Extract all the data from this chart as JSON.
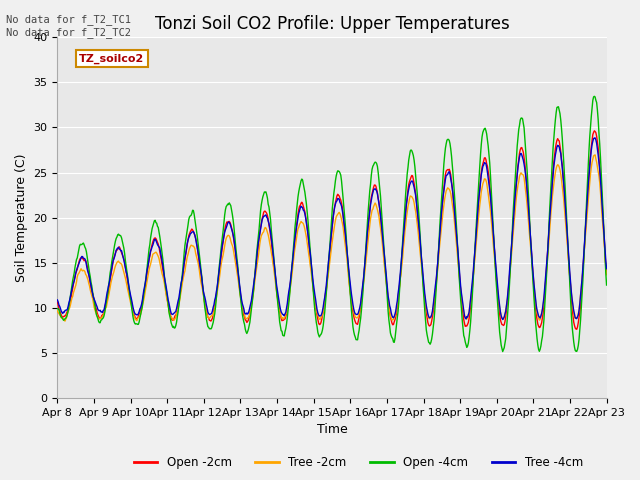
{
  "title": "Tonzi Soil CO2 Profile: Upper Temperatures",
  "xlabel": "Time",
  "ylabel": "Soil Temperature (C)",
  "ylim": [
    0,
    40
  ],
  "yticks": [
    0,
    5,
    10,
    15,
    20,
    25,
    30,
    35,
    40
  ],
  "xtick_labels": [
    "Apr 8",
    "Apr 9",
    "Apr 10",
    "Apr 11",
    "Apr 12",
    "Apr 13",
    "Apr 14",
    "Apr 15",
    "Apr 16",
    "Apr 17",
    "Apr 18",
    "Apr 19",
    "Apr 20",
    "Apr 21",
    "Apr 22",
    "Apr 23"
  ],
  "annotation_text": "No data for f_T2_TC1\nNo data for f_T2_TC2",
  "legend_label": "TZ_soilco2",
  "legend_entries": [
    "Open -2cm",
    "Tree -2cm",
    "Open -4cm",
    "Tree -4cm"
  ],
  "line_colors": [
    "#ff0000",
    "#ffa500",
    "#00bb00",
    "#0000cc"
  ],
  "fig_bg_color": "#f0f0f0",
  "plot_bg_color": "#e8e8e8",
  "grid_color": "#ffffff",
  "title_fontsize": 12,
  "axis_fontsize": 9,
  "tick_fontsize": 8
}
